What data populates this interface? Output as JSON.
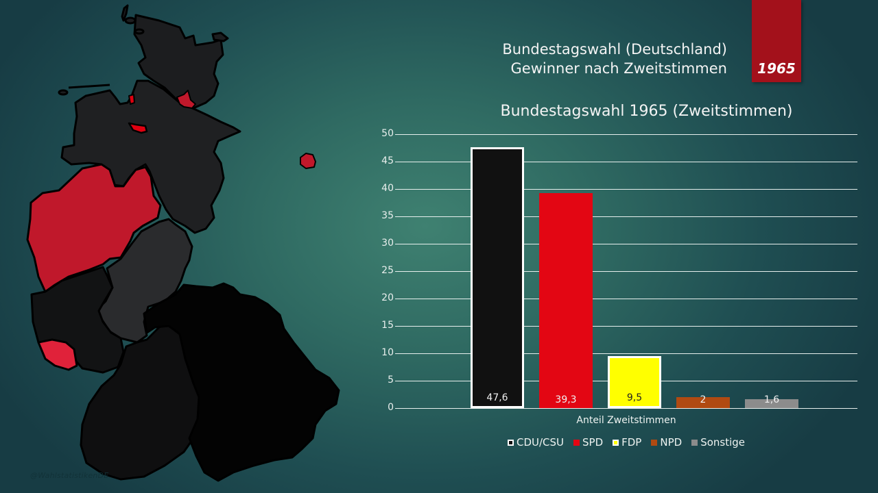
{
  "header": {
    "line1": "Bundestagswahl (Deutschland)",
    "line2": "Gewinner nach Zweitstimmen",
    "year": "1965",
    "badge_color": "#a3111b"
  },
  "watermark": "@WahlstatistikenDE",
  "map": {
    "description": "Map of West German states colored by Zweitstimmen winner",
    "colors": {
      "cdu_dark": "#1c1d1f",
      "cdu_black": "#050505",
      "spd_red": "#c0182b",
      "spd_bright": "#e00010"
    }
  },
  "chart_data": {
    "type": "bar",
    "title": "Bundestagswahl 1965 (Zweitstimmen)",
    "xlabel": "Anteil Zweitstimmen",
    "ylabel": "",
    "ylim": [
      0,
      50
    ],
    "yticks": [
      "0",
      "5",
      "10",
      "15",
      "20",
      "25",
      "30",
      "35",
      "40",
      "45",
      "50"
    ],
    "grid": true,
    "legend_position": "bottom",
    "categories": [
      "Anteil Zweitstimmen"
    ],
    "series": [
      {
        "name": "CDU/CSU",
        "values": [
          47.6
        ],
        "label": "47,6",
        "color": "#111111",
        "border": "#ffffff"
      },
      {
        "name": "SPD",
        "values": [
          39.3
        ],
        "label": "39,3",
        "color": "#e30613",
        "border": ""
      },
      {
        "name": "FDP",
        "values": [
          9.5
        ],
        "label": "9,5",
        "color": "#ffff00",
        "border": "#ffffff"
      },
      {
        "name": "NPD",
        "values": [
          2
        ],
        "label": "2",
        "color": "#b04a12",
        "border": ""
      },
      {
        "name": "Sonstige",
        "values": [
          1.6
        ],
        "label": "1,6",
        "color": "#8c8c8c",
        "border": ""
      }
    ]
  }
}
